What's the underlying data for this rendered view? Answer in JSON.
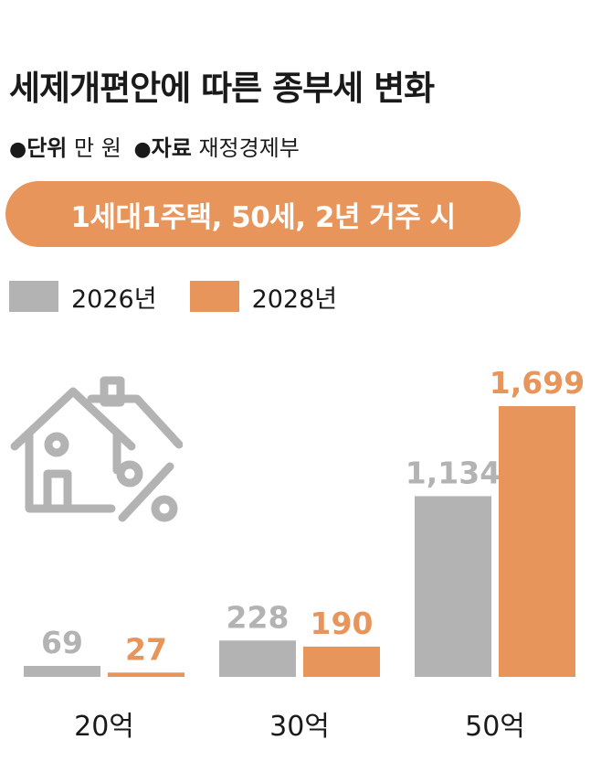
{
  "header": {
    "title": "세제개편안에 따른 종부세 변화",
    "unit_key": "단위",
    "unit_value": "만 원",
    "source_key": "자료",
    "source_value": "재정경제부",
    "bullet": "●"
  },
  "scenario_label": "1세대1주택, 50세, 2년 거주 시",
  "colors": {
    "series_2026": "#b3b3b3",
    "series_2028": "#e8955c",
    "text_dark": "#1a1a1a"
  },
  "icons": {
    "illustration": "house-percent-icon"
  },
  "chart_data": {
    "type": "bar",
    "categories": [
      "20억",
      "30억",
      "50억"
    ],
    "series": [
      {
        "name": "2026년",
        "values": [
          69,
          228,
          1134
        ],
        "labels": [
          "69",
          "228",
          "1,134"
        ],
        "color": "#b3b3b3"
      },
      {
        "name": "2028년",
        "values": [
          27,
          190,
          1699
        ],
        "labels": [
          "27",
          "190",
          "1,699"
        ],
        "color": "#e8955c"
      }
    ],
    "title": "세제개편안에 따른 종부세 변화",
    "legend": "top-left"
  }
}
